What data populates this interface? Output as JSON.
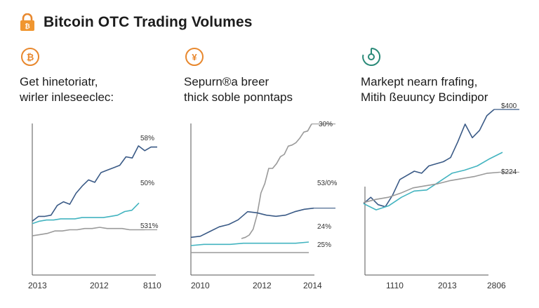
{
  "title": "Bitcoin OTC Trading Volumes",
  "colors": {
    "navy": "#3a5a86",
    "teal": "#43b4c0",
    "gray": "#9a9a9a",
    "orange": "#e8882e",
    "green": "#2a8a78"
  },
  "chart_data": [
    {
      "type": "line",
      "icon": "bitcoin-coin-icon",
      "subtitle": [
        "Get hinetoriatr,",
        "wirler inleseeclec:"
      ],
      "title": "",
      "xlabel": "",
      "ylabel": "",
      "x_ticks": [
        "2013",
        "2012",
        "8110"
      ],
      "grid": false,
      "series": [
        {
          "label": "58%",
          "color": "#3a5a86",
          "values": [
            10,
            14,
            14,
            15,
            23,
            26,
            24,
            33,
            39,
            44,
            42,
            50,
            52,
            54,
            56,
            63,
            62,
            72,
            68,
            71,
            71
          ]
        },
        {
          "label": "50%",
          "color": "#43b4c0",
          "values": [
            8,
            10,
            11,
            11,
            12,
            12,
            12,
            13,
            13,
            13,
            13,
            14,
            15,
            18,
            19,
            25
          ]
        },
        {
          "label": "531%",
          "color": "#9a9a9a",
          "values": [
            -2,
            -1,
            0,
            2,
            2,
            3,
            3,
            4,
            4,
            5,
            4,
            4,
            4,
            3,
            3,
            3
          ]
        }
      ]
    },
    {
      "type": "line",
      "icon": "yuan-coin-icon",
      "subtitle": [
        "Sepurn®a breer",
        "thick soble ponntaps"
      ],
      "title": "",
      "xlabel": "",
      "ylabel": "",
      "x_ticks": [
        "2010",
        "2012",
        "2014"
      ],
      "grid": false,
      "series": [
        {
          "label": "30%",
          "color": "#9a9a9a",
          "values": [
            8,
            9,
            11,
            16,
            28,
            47,
            55,
            68,
            68,
            72,
            78,
            80,
            87,
            88,
            90,
            94,
            99,
            100,
            106
          ]
        },
        {
          "label": "53/0%",
          "color": "#3a5a86",
          "values": [
            9,
            10,
            14,
            18,
            20,
            24,
            31,
            30,
            28,
            27,
            28,
            31,
            33,
            34
          ]
        },
        {
          "label": "24%",
          "color": "#43b4c0",
          "values": [
            2,
            3,
            3,
            3,
            4,
            4,
            4,
            4,
            4,
            5
          ]
        },
        {
          "label": "25%",
          "color": "#9a9a9a",
          "values": [
            -4,
            -4,
            -4,
            -4,
            -4,
            -4,
            -4,
            -4,
            -4,
            -4
          ]
        }
      ]
    },
    {
      "type": "line",
      "icon": "target-gauge-icon",
      "subtitle": [
        "Markept nearn frafing,",
        "Mitih ßeuuncy Bcindipor"
      ],
      "title": "",
      "xlabel": "",
      "ylabel": "",
      "x_ticks": [
        "1110",
        "2013",
        "2806"
      ],
      "grid": false,
      "series": [
        {
          "label": "$400",
          "color": "#3a5a86",
          "values": [
            40,
            46,
            39,
            37,
            48,
            63,
            67,
            71,
            69,
            76,
            78,
            80,
            84,
            99,
            116,
            103,
            110,
            124,
            130
          ]
        },
        {
          "label": "",
          "color": "#43b4c0",
          "values": [
            40,
            34,
            38,
            46,
            52,
            53,
            61,
            69,
            72,
            76,
            83,
            89
          ]
        },
        {
          "label": "$224",
          "color": "#9a9a9a",
          "values": [
            41,
            44,
            46,
            50,
            55,
            57,
            59,
            62,
            64,
            66,
            69,
            70
          ]
        }
      ]
    }
  ]
}
